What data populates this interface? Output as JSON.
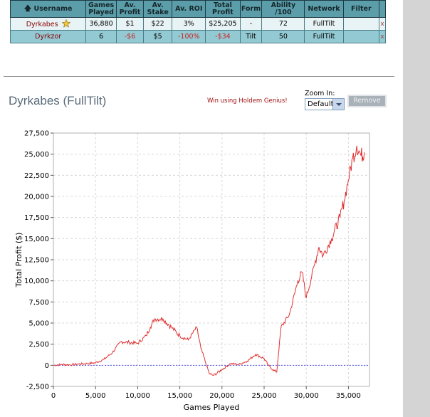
{
  "table": {
    "headers": [
      "Username",
      "Games Played",
      "Av. Profit",
      "Av. Stake",
      "Av. ROI",
      "Total Profit",
      "Form",
      "Ability /100",
      "Network",
      "Filter"
    ],
    "rows": [
      {
        "username": "Dyrkabes",
        "games": "36,880",
        "av_profit": "$1",
        "av_stake": "$22",
        "roi": "3%",
        "total": "$25,205",
        "form": "-",
        "ability": "72",
        "network": "FullTilt",
        "remove": "x",
        "favourite_icon": "star-icon"
      },
      {
        "username": "Dyrkzor",
        "games": "6",
        "av_profit": "-$6",
        "av_stake": "$5",
        "roi": "-100%",
        "total": "-$34",
        "form": "Tilt",
        "ability": "50",
        "network": "FullTilt",
        "remove": "x"
      }
    ]
  },
  "panel": {
    "title": "Dyrkabes (FullTilt)",
    "genius_link": "Win using Holdem Genius!",
    "zoom_label": "Zoom In:",
    "zoom_value": "Default",
    "remove_button": "Remove"
  },
  "chart_data": {
    "type": "line",
    "xlabel": "Games Played",
    "ylabel": "Total Profit ($)",
    "xlim": [
      0,
      37500
    ],
    "ylim": [
      -2500,
      27500
    ],
    "x_ticks": [
      0,
      5000,
      10000,
      15000,
      20000,
      25000,
      30000,
      35000
    ],
    "x_tick_labels": [
      "0",
      "5,000",
      "10,000",
      "15,000",
      "20,000",
      "25,000",
      "30,000",
      "35,000"
    ],
    "y_ticks": [
      -2500,
      0,
      2500,
      5000,
      7500,
      10000,
      12500,
      15000,
      17500,
      20000,
      22500,
      25000,
      27500
    ],
    "y_tick_labels": [
      "-2,500",
      "0",
      "2,500",
      "5,000",
      "7,500",
      "10,000",
      "12,500",
      "15,000",
      "17,500",
      "20,000",
      "22,500",
      "25,000",
      "27,500"
    ],
    "grid": true,
    "line_color": "#e03030",
    "zero_line_color": "#5555ee",
    "series": [
      {
        "x": [
          0,
          1000,
          2000,
          3000,
          4000,
          5000,
          6000,
          7000,
          8000,
          9000,
          10000,
          11000,
          11500,
          12000,
          13000,
          14000,
          15000,
          16000,
          17000,
          17500,
          18000,
          18500,
          19000,
          20000,
          21000,
          22000,
          23000,
          24000,
          25000,
          25500,
          26000,
          26500,
          27000,
          28000,
          29000,
          29500,
          30000,
          31000,
          31500,
          32000,
          33000,
          34000,
          34500,
          35000,
          35500,
          36000,
          36500,
          36880
        ],
        "y": [
          0,
          100,
          50,
          150,
          200,
          300,
          700,
          1500,
          2800,
          2700,
          2600,
          3500,
          4500,
          5500,
          5500,
          4500,
          3500,
          3000,
          4500,
          2000,
          500,
          -1000,
          -1200,
          -500,
          200,
          100,
          500,
          1300,
          800,
          0,
          -500,
          -800,
          4500,
          6000,
          10000,
          11000,
          8000,
          12000,
          14000,
          13000,
          15000,
          17500,
          19500,
          22000,
          24500,
          26000,
          24800,
          25205
        ]
      }
    ]
  }
}
